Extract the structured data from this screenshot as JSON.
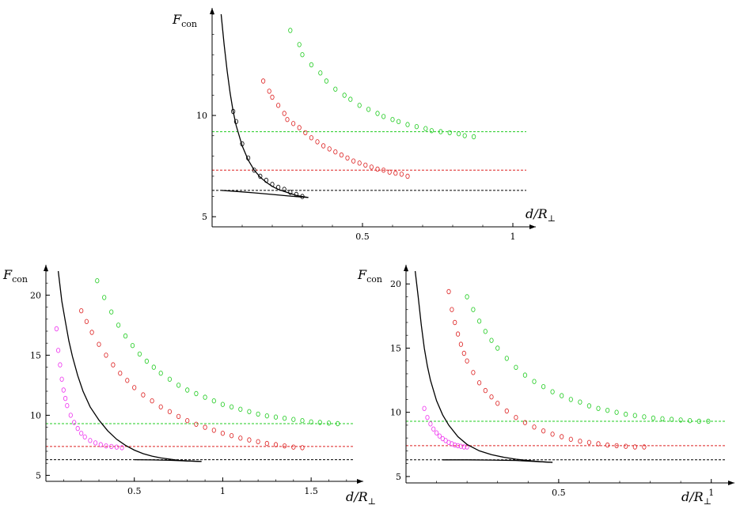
{
  "chart_data": [
    {
      "type": "scatter",
      "title": "",
      "ylabel": "F",
      "ylabel_sub": "con",
      "xlabel": "d/R",
      "xlabel_sub": "⊥",
      "xlim": [
        0,
        1.05
      ],
      "ylim": [
        4.5,
        15
      ],
      "xticks": [
        0.5,
        1
      ],
      "xtick_labels": [
        "0.5",
        "1"
      ],
      "yticks": [
        5,
        10
      ],
      "ytick_labels": [
        "5",
        "10"
      ],
      "reference_lines": [
        {
          "y": 9.2,
          "color": "#22cc22",
          "x_range": [
            0,
            1.05
          ]
        },
        {
          "y": 7.3,
          "color": "#dd2222",
          "x_range": [
            0,
            1.05
          ]
        },
        {
          "y": 6.3,
          "color": "#000000",
          "x_range": [
            0,
            1.05
          ]
        }
      ],
      "series": [
        {
          "color": "#22cc22",
          "kind": "markers",
          "x": [
            0.26,
            0.29,
            0.3,
            0.33,
            0.36,
            0.38,
            0.41,
            0.44,
            0.46,
            0.49,
            0.52,
            0.55,
            0.57,
            0.6,
            0.62,
            0.65,
            0.68,
            0.71,
            0.73,
            0.76,
            0.79,
            0.82,
            0.84,
            0.87
          ],
          "y": [
            14.2,
            13.5,
            13.0,
            12.5,
            12.1,
            11.7,
            11.3,
            11.0,
            10.8,
            10.5,
            10.3,
            10.1,
            9.95,
            9.8,
            9.7,
            9.55,
            9.45,
            9.35,
            9.25,
            9.2,
            9.15,
            9.1,
            9.0,
            8.95
          ]
        },
        {
          "color": "#dd2222",
          "kind": "markers",
          "x": [
            0.17,
            0.19,
            0.2,
            0.22,
            0.24,
            0.25,
            0.27,
            0.29,
            0.31,
            0.33,
            0.35,
            0.37,
            0.39,
            0.41,
            0.43,
            0.45,
            0.47,
            0.49,
            0.51,
            0.53,
            0.55,
            0.57,
            0.59,
            0.61,
            0.63,
            0.65
          ],
          "y": [
            11.7,
            11.2,
            10.9,
            10.5,
            10.1,
            9.8,
            9.6,
            9.4,
            9.15,
            8.9,
            8.7,
            8.5,
            8.35,
            8.2,
            8.05,
            7.9,
            7.75,
            7.65,
            7.55,
            7.45,
            7.35,
            7.3,
            7.2,
            7.15,
            7.1,
            7.0
          ]
        },
        {
          "color": "#000000",
          "kind": "markers",
          "x": [
            0.07,
            0.08,
            0.1,
            0.12,
            0.14,
            0.16,
            0.18,
            0.2,
            0.22,
            0.24,
            0.26,
            0.28,
            0.3
          ],
          "y": [
            10.2,
            9.7,
            8.6,
            7.9,
            7.3,
            7.0,
            6.8,
            6.6,
            6.45,
            6.35,
            6.2,
            6.1,
            6.0
          ]
        },
        {
          "color": "#000000",
          "kind": "line",
          "x": [
            0.03,
            0.04,
            0.05,
            0.06,
            0.07,
            0.08,
            0.1,
            0.12,
            0.14,
            0.16,
            0.18,
            0.2,
            0.22,
            0.24,
            0.26,
            0.28,
            0.3,
            0.32
          ],
          "y": [
            15,
            13.5,
            12.2,
            11.1,
            10.2,
            9.5,
            8.5,
            7.8,
            7.3,
            6.95,
            6.7,
            6.5,
            6.35,
            6.25,
            6.15,
            6.05,
            6.0,
            5.95
          ]
        },
        {
          "color": "#000000",
          "kind": "line",
          "x": [
            0.03,
            0.08,
            0.14,
            0.2,
            0.26,
            0.32
          ],
          "y": [
            6.3,
            6.25,
            6.18,
            6.1,
            6.02,
            5.95
          ]
        }
      ]
    },
    {
      "type": "scatter",
      "title": "",
      "ylabel": "F",
      "ylabel_sub": "con",
      "xlabel": "d/R",
      "xlabel_sub": "⊥",
      "xlim": [
        0,
        1.75
      ],
      "ylim": [
        4.5,
        22
      ],
      "xticks": [
        0.5,
        1,
        1.5
      ],
      "xtick_labels": [
        "0.5",
        "1",
        "1.5"
      ],
      "yticks": [
        5,
        10,
        15,
        20
      ],
      "ytick_labels": [
        "5",
        "10",
        "15",
        "20"
      ],
      "reference_lines": [
        {
          "y": 9.3,
          "color": "#22cc22",
          "x_range": [
            0,
            1.75
          ]
        },
        {
          "y": 7.4,
          "color": "#dd2222",
          "x_range": [
            0,
            1.75
          ]
        },
        {
          "y": 6.3,
          "color": "#000000",
          "x_range": [
            0,
            1.75
          ]
        }
      ],
      "series": [
        {
          "color": "#22cc22",
          "kind": "markers",
          "x": [
            0.29,
            0.33,
            0.37,
            0.41,
            0.45,
            0.49,
            0.53,
            0.57,
            0.61,
            0.65,
            0.7,
            0.75,
            0.8,
            0.85,
            0.9,
            0.95,
            1.0,
            1.05,
            1.1,
            1.15,
            1.2,
            1.25,
            1.3,
            1.35,
            1.4,
            1.45,
            1.5,
            1.55,
            1.6,
            1.65
          ],
          "y": [
            21.2,
            19.8,
            18.6,
            17.5,
            16.6,
            15.8,
            15.1,
            14.5,
            14.0,
            13.5,
            13.0,
            12.5,
            12.1,
            11.8,
            11.5,
            11.2,
            10.9,
            10.7,
            10.5,
            10.3,
            10.1,
            9.95,
            9.85,
            9.75,
            9.65,
            9.55,
            9.45,
            9.4,
            9.35,
            9.3
          ]
        },
        {
          "color": "#dd2222",
          "kind": "markers",
          "x": [
            0.2,
            0.23,
            0.26,
            0.3,
            0.34,
            0.38,
            0.42,
            0.46,
            0.5,
            0.55,
            0.6,
            0.65,
            0.7,
            0.75,
            0.8,
            0.85,
            0.9,
            0.95,
            1.0,
            1.05,
            1.1,
            1.15,
            1.2,
            1.25,
            1.3,
            1.35,
            1.4,
            1.45
          ],
          "y": [
            18.7,
            17.8,
            16.9,
            15.9,
            15.0,
            14.2,
            13.5,
            12.9,
            12.3,
            11.7,
            11.2,
            10.7,
            10.3,
            9.9,
            9.55,
            9.25,
            9.0,
            8.75,
            8.5,
            8.3,
            8.1,
            7.95,
            7.8,
            7.65,
            7.55,
            7.45,
            7.35,
            7.3
          ]
        },
        {
          "color": "#ee33ee",
          "kind": "markers",
          "x": [
            0.06,
            0.07,
            0.08,
            0.09,
            0.1,
            0.11,
            0.12,
            0.14,
            0.16,
            0.18,
            0.2,
            0.22,
            0.25,
            0.28,
            0.31,
            0.34,
            0.37,
            0.4,
            0.43
          ],
          "y": [
            17.2,
            15.4,
            14.2,
            13.0,
            12.1,
            11.4,
            10.8,
            10.0,
            9.4,
            8.9,
            8.5,
            8.2,
            7.9,
            7.7,
            7.55,
            7.45,
            7.4,
            7.35,
            7.3
          ]
        },
        {
          "color": "#000000",
          "kind": "line",
          "x": [
            0.07,
            0.09,
            0.11,
            0.13,
            0.15,
            0.18,
            0.21,
            0.25,
            0.3,
            0.35,
            0.4,
            0.45,
            0.5,
            0.55,
            0.6,
            0.65,
            0.7,
            0.75,
            0.8,
            0.88
          ],
          "y": [
            22,
            19.5,
            17.8,
            16.2,
            14.9,
            13.3,
            12.0,
            10.7,
            9.6,
            8.7,
            8.0,
            7.5,
            7.1,
            6.8,
            6.6,
            6.45,
            6.35,
            6.25,
            6.2,
            6.15
          ]
        },
        {
          "color": "#000000",
          "kind": "line",
          "x": [
            0.5,
            0.6,
            0.7,
            0.8,
            0.88
          ],
          "y": [
            6.3,
            6.28,
            6.25,
            6.2,
            6.15
          ]
        }
      ]
    },
    {
      "type": "scatter",
      "title": "",
      "ylabel": "F",
      "ylabel_sub": "con",
      "xlabel": "d/R",
      "xlabel_sub": "⊥",
      "xlim": [
        0,
        1.05
      ],
      "ylim": [
        4.5,
        21
      ],
      "xticks": [
        0.5,
        1
      ],
      "xtick_labels": [
        "0.5",
        "1"
      ],
      "yticks": [
        5,
        10,
        15,
        20
      ],
      "ytick_labels": [
        "5",
        "10",
        "15",
        "20"
      ],
      "reference_lines": [
        {
          "y": 9.3,
          "color": "#22cc22",
          "x_range": [
            0,
            1.05
          ]
        },
        {
          "y": 7.4,
          "color": "#dd2222",
          "x_range": [
            0,
            1.05
          ]
        },
        {
          "y": 6.3,
          "color": "#000000",
          "x_range": [
            0,
            1.05
          ]
        }
      ],
      "series": [
        {
          "color": "#22cc22",
          "kind": "markers",
          "x": [
            0.2,
            0.22,
            0.24,
            0.26,
            0.28,
            0.3,
            0.33,
            0.36,
            0.39,
            0.42,
            0.45,
            0.48,
            0.51,
            0.54,
            0.57,
            0.6,
            0.63,
            0.66,
            0.69,
            0.72,
            0.75,
            0.78,
            0.81,
            0.84,
            0.87,
            0.9,
            0.93,
            0.96,
            0.99
          ],
          "y": [
            19.0,
            18.0,
            17.1,
            16.3,
            15.6,
            15.0,
            14.2,
            13.5,
            12.9,
            12.4,
            12.0,
            11.6,
            11.3,
            11.0,
            10.8,
            10.5,
            10.3,
            10.15,
            10.0,
            9.85,
            9.75,
            9.65,
            9.55,
            9.5,
            9.45,
            9.4,
            9.35,
            9.3,
            9.3
          ]
        },
        {
          "color": "#dd2222",
          "kind": "markers",
          "x": [
            0.14,
            0.15,
            0.16,
            0.17,
            0.18,
            0.19,
            0.2,
            0.22,
            0.24,
            0.26,
            0.28,
            0.3,
            0.33,
            0.36,
            0.39,
            0.42,
            0.45,
            0.48,
            0.51,
            0.54,
            0.57,
            0.6,
            0.63,
            0.66,
            0.69,
            0.72,
            0.75,
            0.78
          ],
          "y": [
            19.4,
            18.0,
            17.0,
            16.1,
            15.3,
            14.6,
            14.0,
            13.1,
            12.3,
            11.7,
            11.2,
            10.7,
            10.1,
            9.6,
            9.2,
            8.85,
            8.55,
            8.3,
            8.1,
            7.9,
            7.75,
            7.65,
            7.55,
            7.45,
            7.4,
            7.35,
            7.3,
            7.3
          ]
        },
        {
          "color": "#ee33ee",
          "kind": "markers",
          "x": [
            0.06,
            0.07,
            0.08,
            0.09,
            0.1,
            0.11,
            0.12,
            0.13,
            0.14,
            0.15,
            0.16,
            0.17,
            0.18,
            0.19,
            0.2
          ],
          "y": [
            10.3,
            9.6,
            9.1,
            8.7,
            8.4,
            8.15,
            7.95,
            7.8,
            7.65,
            7.55,
            7.45,
            7.4,
            7.35,
            7.3,
            7.3
          ]
        },
        {
          "color": "#000000",
          "kind": "line",
          "x": [
            0.03,
            0.04,
            0.05,
            0.06,
            0.07,
            0.08,
            0.1,
            0.12,
            0.14,
            0.17,
            0.2,
            0.24,
            0.28,
            0.32,
            0.36,
            0.4,
            0.44,
            0.48
          ],
          "y": [
            21,
            19.0,
            16.8,
            15.0,
            13.6,
            12.5,
            10.9,
            9.8,
            9.0,
            8.1,
            7.5,
            7.0,
            6.7,
            6.5,
            6.35,
            6.25,
            6.15,
            6.1
          ]
        },
        {
          "color": "#000000",
          "kind": "line",
          "x": [
            0.12,
            0.2,
            0.28,
            0.36,
            0.44,
            0.48
          ],
          "y": [
            6.3,
            6.3,
            6.28,
            6.25,
            6.15,
            6.1
          ]
        }
      ]
    }
  ]
}
